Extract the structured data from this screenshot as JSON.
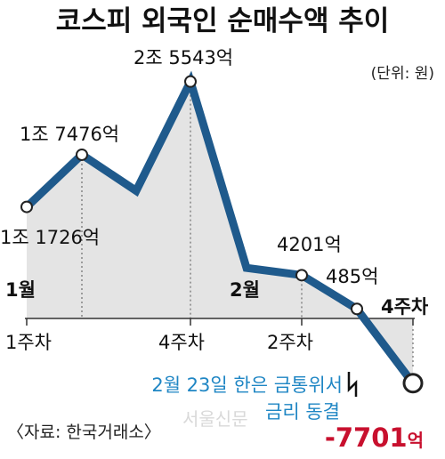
{
  "title": "코스피 외국인 순매수액 추이",
  "unit": "(단위: 원)",
  "source": "〈자료: 한국거래소〉",
  "watermark": "서울신문",
  "annotation": [
    "2월 23일 한은 금통위서",
    "금리 동결"
  ],
  "months": [
    "1월",
    "2월"
  ],
  "colors": {
    "line": "#1f5a8c",
    "area": "#e4e4e4",
    "note": "#1f86c4",
    "negative": "#c8102e"
  },
  "chart_data": {
    "type": "area",
    "unit": "억원",
    "x": [
      "1월 1주차",
      "1월 2주차",
      "1월 3주차",
      "1월 4주차",
      "2월 1주차",
      "2월 2주차",
      "2월 3주차",
      "2월 4주차"
    ],
    "x_tick_labels": [
      "1주차",
      "4주차",
      "2주차",
      "4주차"
    ],
    "values": [
      11726,
      17476,
      13500,
      25543,
      5000,
      4201,
      485,
      -7701
    ],
    "labels": [
      "1조 1726억",
      "1조 7476억",
      "",
      "2조 5543억",
      "",
      "4201억",
      "485억",
      "-7701억"
    ]
  }
}
